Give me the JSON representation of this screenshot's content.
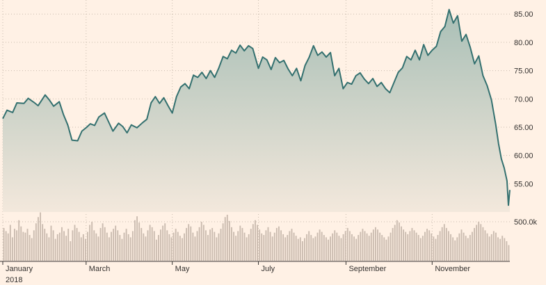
{
  "colors": {
    "background": "#fff1e5",
    "price_line": "#33706f",
    "area_top": "#a9bfb6",
    "area_bottom": "#f3e8dc",
    "volume_bar": "#cbbcb0",
    "grid": "#c9bcae",
    "axis": "#33302e"
  },
  "chart_data": {
    "type": "line",
    "title": "",
    "xlabel": "",
    "ylabel": "",
    "grid": true,
    "legend": "none",
    "year_label": "2018",
    "x_range": [
      "2018-01-01",
      "2018-12-26"
    ],
    "month_ticks": [
      {
        "date": "2018-01-01",
        "label": "January"
      },
      {
        "date": "2018-03-01",
        "label": "March"
      },
      {
        "date": "2018-05-01",
        "label": "May"
      },
      {
        "date": "2018-07-01",
        "label": "July"
      },
      {
        "date": "2018-09-01",
        "label": "September"
      },
      {
        "date": "2018-11-01",
        "label": "November"
      }
    ],
    "price_axis": {
      "position": "right",
      "ylim": [
        50,
        86.5
      ],
      "ticks": [
        55,
        60,
        65,
        70,
        75,
        80,
        85
      ],
      "tick_labels": [
        "55.00",
        "60.00",
        "65.00",
        "70.00",
        "75.00",
        "80.00",
        "85.00"
      ]
    },
    "volume_axis": {
      "tick_label": "500.0k",
      "tick_value": 500000
    },
    "price_series": {
      "name": "",
      "points": [
        {
          "x": "2018-01-01",
          "y": 66.5
        },
        {
          "x": "2018-01-04",
          "y": 68.0
        },
        {
          "x": "2018-01-08",
          "y": 67.6
        },
        {
          "x": "2018-01-11",
          "y": 69.3
        },
        {
          "x": "2018-01-16",
          "y": 69.2
        },
        {
          "x": "2018-01-19",
          "y": 70.1
        },
        {
          "x": "2018-01-23",
          "y": 69.4
        },
        {
          "x": "2018-01-26",
          "y": 68.8
        },
        {
          "x": "2018-01-31",
          "y": 70.7
        },
        {
          "x": "2018-02-03",
          "y": 69.8
        },
        {
          "x": "2018-02-06",
          "y": 68.7
        },
        {
          "x": "2018-02-10",
          "y": 69.5
        },
        {
          "x": "2018-02-13",
          "y": 67.2
        },
        {
          "x": "2018-02-16",
          "y": 65.4
        },
        {
          "x": "2018-02-19",
          "y": 62.7
        },
        {
          "x": "2018-02-23",
          "y": 62.6
        },
        {
          "x": "2018-02-26",
          "y": 64.3
        },
        {
          "x": "2018-03-01",
          "y": 64.9
        },
        {
          "x": "2018-03-04",
          "y": 65.6
        },
        {
          "x": "2018-03-07",
          "y": 65.3
        },
        {
          "x": "2018-03-10",
          "y": 66.8
        },
        {
          "x": "2018-03-14",
          "y": 67.5
        },
        {
          "x": "2018-03-17",
          "y": 65.9
        },
        {
          "x": "2018-03-20",
          "y": 64.3
        },
        {
          "x": "2018-03-24",
          "y": 65.7
        },
        {
          "x": "2018-03-27",
          "y": 65.1
        },
        {
          "x": "2018-03-30",
          "y": 64.0
        },
        {
          "x": "2018-04-02",
          "y": 65.4
        },
        {
          "x": "2018-04-06",
          "y": 64.9
        },
        {
          "x": "2018-04-10",
          "y": 65.8
        },
        {
          "x": "2018-04-13",
          "y": 66.4
        },
        {
          "x": "2018-04-16",
          "y": 69.3
        },
        {
          "x": "2018-04-19",
          "y": 70.4
        },
        {
          "x": "2018-04-22",
          "y": 69.2
        },
        {
          "x": "2018-04-25",
          "y": 70.2
        },
        {
          "x": "2018-04-28",
          "y": 68.8
        },
        {
          "x": "2018-05-01",
          "y": 67.5
        },
        {
          "x": "2018-05-04",
          "y": 70.4
        },
        {
          "x": "2018-05-07",
          "y": 72.1
        },
        {
          "x": "2018-05-10",
          "y": 72.7
        },
        {
          "x": "2018-05-13",
          "y": 71.8
        },
        {
          "x": "2018-05-16",
          "y": 74.2
        },
        {
          "x": "2018-05-19",
          "y": 73.8
        },
        {
          "x": "2018-05-22",
          "y": 74.7
        },
        {
          "x": "2018-05-25",
          "y": 73.6
        },
        {
          "x": "2018-05-28",
          "y": 75.0
        },
        {
          "x": "2018-05-31",
          "y": 73.8
        },
        {
          "x": "2018-06-03",
          "y": 75.5
        },
        {
          "x": "2018-06-06",
          "y": 77.5
        },
        {
          "x": "2018-06-09",
          "y": 77.1
        },
        {
          "x": "2018-06-12",
          "y": 78.6
        },
        {
          "x": "2018-06-15",
          "y": 78.1
        },
        {
          "x": "2018-06-18",
          "y": 79.5
        },
        {
          "x": "2018-06-21",
          "y": 78.5
        },
        {
          "x": "2018-06-24",
          "y": 79.4
        },
        {
          "x": "2018-06-27",
          "y": 78.9
        },
        {
          "x": "2018-07-01",
          "y": 75.4
        },
        {
          "x": "2018-07-04",
          "y": 77.4
        },
        {
          "x": "2018-07-07",
          "y": 76.9
        },
        {
          "x": "2018-07-10",
          "y": 75.2
        },
        {
          "x": "2018-07-13",
          "y": 77.3
        },
        {
          "x": "2018-07-16",
          "y": 76.4
        },
        {
          "x": "2018-07-19",
          "y": 76.8
        },
        {
          "x": "2018-07-22",
          "y": 75.3
        },
        {
          "x": "2018-07-25",
          "y": 74.1
        },
        {
          "x": "2018-07-28",
          "y": 75.4
        },
        {
          "x": "2018-07-31",
          "y": 73.2
        },
        {
          "x": "2018-08-03",
          "y": 75.9
        },
        {
          "x": "2018-08-06",
          "y": 77.4
        },
        {
          "x": "2018-08-09",
          "y": 79.4
        },
        {
          "x": "2018-08-12",
          "y": 77.7
        },
        {
          "x": "2018-08-15",
          "y": 78.3
        },
        {
          "x": "2018-08-18",
          "y": 77.4
        },
        {
          "x": "2018-08-21",
          "y": 78.2
        },
        {
          "x": "2018-08-24",
          "y": 74.1
        },
        {
          "x": "2018-08-27",
          "y": 75.4
        },
        {
          "x": "2018-08-30",
          "y": 71.8
        },
        {
          "x": "2018-09-02",
          "y": 72.9
        },
        {
          "x": "2018-09-05",
          "y": 72.6
        },
        {
          "x": "2018-09-08",
          "y": 74.1
        },
        {
          "x": "2018-09-11",
          "y": 74.6
        },
        {
          "x": "2018-09-14",
          "y": 73.5
        },
        {
          "x": "2018-09-17",
          "y": 72.7
        },
        {
          "x": "2018-09-20",
          "y": 73.6
        },
        {
          "x": "2018-09-23",
          "y": 72.2
        },
        {
          "x": "2018-09-26",
          "y": 72.9
        },
        {
          "x": "2018-09-29",
          "y": 71.8
        },
        {
          "x": "2018-10-02",
          "y": 71.1
        },
        {
          "x": "2018-10-05",
          "y": 72.9
        },
        {
          "x": "2018-10-08",
          "y": 74.7
        },
        {
          "x": "2018-10-11",
          "y": 75.5
        },
        {
          "x": "2018-10-14",
          "y": 77.5
        },
        {
          "x": "2018-10-17",
          "y": 76.9
        },
        {
          "x": "2018-10-20",
          "y": 78.6
        },
        {
          "x": "2018-10-23",
          "y": 76.9
        },
        {
          "x": "2018-10-26",
          "y": 79.6
        },
        {
          "x": "2018-10-29",
          "y": 77.7
        },
        {
          "x": "2018-11-01",
          "y": 78.6
        },
        {
          "x": "2018-11-04",
          "y": 79.3
        },
        {
          "x": "2018-11-07",
          "y": 81.9
        },
        {
          "x": "2018-11-10",
          "y": 82.8
        },
        {
          "x": "2018-11-13",
          "y": 85.8
        },
        {
          "x": "2018-11-16",
          "y": 83.4
        },
        {
          "x": "2018-11-19",
          "y": 84.7
        },
        {
          "x": "2018-11-22",
          "y": 80.2
        },
        {
          "x": "2018-11-25",
          "y": 81.4
        },
        {
          "x": "2018-11-28",
          "y": 79.1
        },
        {
          "x": "2018-12-01",
          "y": 76.2
        },
        {
          "x": "2018-12-04",
          "y": 77.6
        },
        {
          "x": "2018-12-07",
          "y": 74.1
        },
        {
          "x": "2018-12-10",
          "y": 72.3
        },
        {
          "x": "2018-12-13",
          "y": 69.8
        },
        {
          "x": "2018-12-16",
          "y": 65.5
        },
        {
          "x": "2018-12-18",
          "y": 62.1
        },
        {
          "x": "2018-12-20",
          "y": 59.4
        },
        {
          "x": "2018-12-22",
          "y": 57.8
        },
        {
          "x": "2018-12-24",
          "y": 55.5
        },
        {
          "x": "2018-12-25",
          "y": 51.2
        },
        {
          "x": "2018-12-26",
          "y": 53.9
        }
      ]
    },
    "volume_series": {
      "name": "",
      "note_units": "shares",
      "values": [
        420000,
        380000,
        350000,
        460000,
        300000,
        410000,
        390000,
        520000,
        440000,
        370000,
        360000,
        410000,
        330000,
        290000,
        390000,
        480000,
        560000,
        620000,
        470000,
        410000,
        350000,
        300000,
        450000,
        390000,
        280000,
        340000,
        360000,
        430000,
        380000,
        320000,
        410000,
        250000,
        390000,
        460000,
        420000,
        370000,
        300000,
        340000,
        280000,
        370000,
        460000,
        500000,
        390000,
        350000,
        310000,
        420000,
        480000,
        430000,
        360000,
        300000,
        370000,
        410000,
        450000,
        390000,
        330000,
        280000,
        360000,
        410000,
        340000,
        300000,
        380000,
        520000,
        570000,
        490000,
        420000,
        350000,
        310000,
        390000,
        460000,
        430000,
        380000,
        270000,
        330000,
        400000,
        450000,
        480000,
        390000,
        340000,
        300000,
        360000,
        410000,
        370000,
        320000,
        290000,
        350000,
        420000,
        470000,
        440000,
        360000,
        310000,
        380000,
        430000,
        500000,
        460000,
        390000,
        330000,
        400000,
        420000,
        370000,
        300000,
        350000,
        410000,
        480000,
        560000,
        590000,
        510000,
        430000,
        370000,
        320000,
        380000,
        450000,
        420000,
        360000,
        300000,
        340000,
        410000,
        470000,
        520000,
        460000,
        400000,
        350000,
        330000,
        390000,
        430000,
        370000,
        310000,
        360000,
        420000,
        440000,
        390000,
        340000,
        300000,
        330000,
        380000,
        410000,
        360000,
        320000,
        280000,
        300000,
        250000,
        290000,
        340000,
        380000,
        330000,
        290000,
        310000,
        360000,
        400000,
        370000,
        330000,
        300000,
        270000,
        310000,
        350000,
        390000,
        360000,
        320000,
        290000,
        340000,
        380000,
        420000,
        380000,
        340000,
        310000,
        280000,
        330000,
        370000,
        410000,
        380000,
        350000,
        320000,
        360000,
        400000,
        430000,
        400000,
        360000,
        330000,
        300000,
        270000,
        310000,
        360000,
        420000,
        460000,
        520000,
        490000,
        440000,
        400000,
        370000,
        340000,
        380000,
        420000,
        390000,
        360000,
        330000,
        290000,
        320000,
        370000,
        410000,
        390000,
        350000,
        310000,
        280000,
        330000,
        380000,
        430000,
        470000,
        420000,
        380000,
        340000,
        300000,
        260000,
        300000,
        350000,
        400000,
        360000,
        320000,
        290000,
        330000,
        370000,
        420000,
        460000,
        500000,
        470000,
        430000,
        390000,
        350000,
        310000,
        340000,
        380000,
        360000,
        300000,
        280000,
        320000,
        290000,
        250000,
        200000
      ]
    }
  }
}
